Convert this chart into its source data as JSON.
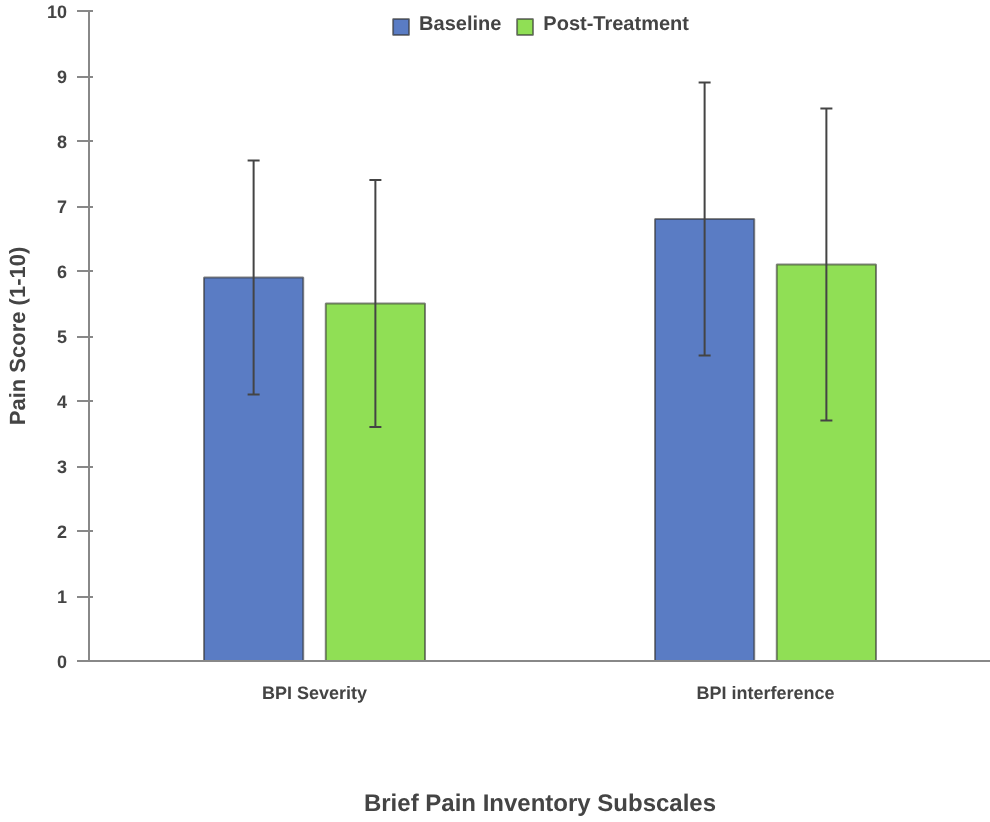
{
  "chart_data": {
    "type": "bar",
    "categories": [
      "BPI Severity",
      "BPI interference"
    ],
    "xlabel": "Brief Pain Inventory Subscales",
    "ylabel": "Pain Score (1-10)",
    "ylim": [
      0,
      10
    ],
    "yticks": [
      0,
      1,
      2,
      3,
      4,
      5,
      6,
      7,
      8,
      9,
      10
    ],
    "grid": false,
    "legend": "top",
    "series": [
      {
        "name": "Baseline",
        "color": "#5a7cc4",
        "values": [
          5.9,
          6.8
        ],
        "errors": [
          1.8,
          2.1
        ]
      },
      {
        "name": "Post-Treatment",
        "color": "#90df55",
        "values": [
          5.5,
          6.1
        ],
        "errors": [
          1.9,
          2.4
        ]
      }
    ]
  }
}
